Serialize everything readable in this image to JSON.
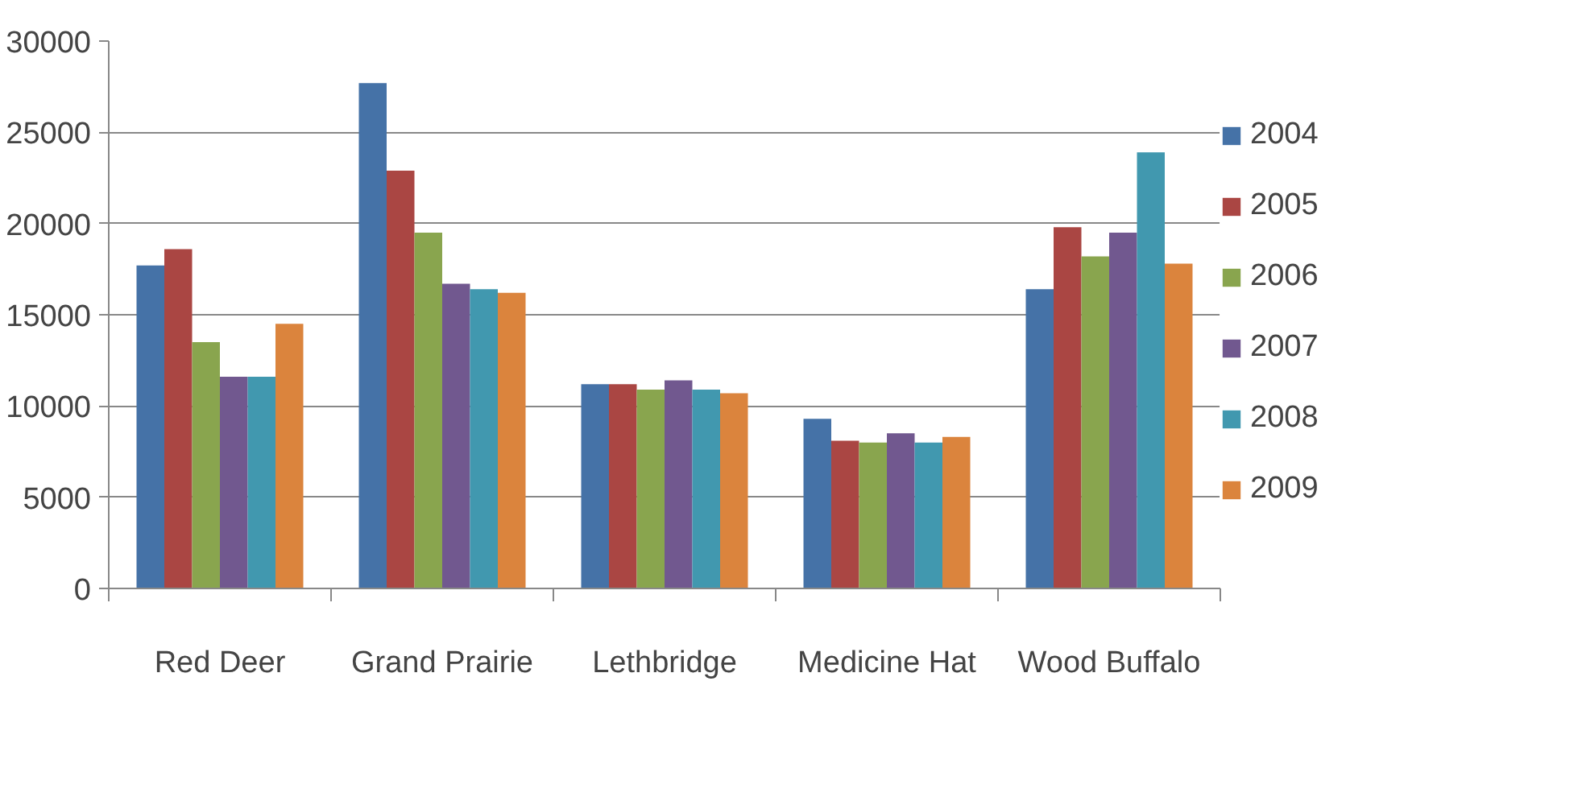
{
  "chart_data": {
    "type": "bar",
    "categories": [
      "Red Deer",
      "Grand Prairie",
      "Lethbridge",
      "Medicine Hat",
      "Wood Buffalo"
    ],
    "series": [
      {
        "name": "2004",
        "color": "#4572a7",
        "values": [
          17700,
          27700,
          11200,
          9300,
          16400
        ]
      },
      {
        "name": "2005",
        "color": "#aa4643",
        "values": [
          18600,
          22900,
          11200,
          8100,
          19800
        ]
      },
      {
        "name": "2006",
        "color": "#89a54e",
        "values": [
          13500,
          19500,
          10900,
          8000,
          18200
        ]
      },
      {
        "name": "2007",
        "color": "#71588f",
        "values": [
          11600,
          16700,
          11400,
          8500,
          19500
        ]
      },
      {
        "name": "2008",
        "color": "#4198af",
        "values": [
          11600,
          16400,
          10900,
          8000,
          23900
        ]
      },
      {
        "name": "2009",
        "color": "#db843d",
        "values": [
          14500,
          16200,
          10700,
          8300,
          17800
        ]
      }
    ],
    "ylim": [
      0,
      30000
    ],
    "yticks": [
      0,
      5000,
      10000,
      15000,
      20000,
      25000,
      30000
    ],
    "grid": "y",
    "legend": "right"
  }
}
